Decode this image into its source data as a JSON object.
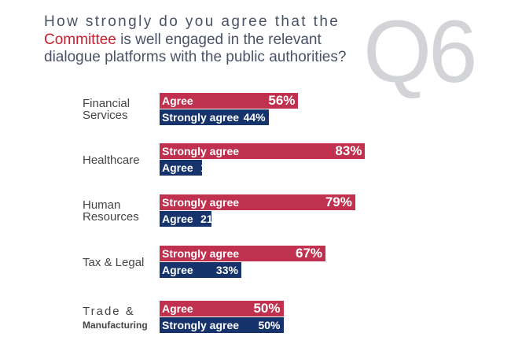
{
  "title": {
    "line1": "How strongly do you agree that the",
    "highlight": "Committee",
    "line2_rest": " is well engaged in the relevant",
    "line3": "dialogue platforms with the public authorities?"
  },
  "badge": "Q6",
  "colors": {
    "top_bar": "#c0304f",
    "bottom_bar": "#16336b",
    "highlight": "#c8202f"
  },
  "chart_data": {
    "type": "bar",
    "orientation": "horizontal",
    "unit": "%",
    "categories": [
      {
        "label": [
          "Financial",
          "Services"
        ],
        "bars": [
          {
            "label": "Agree",
            "value": 56,
            "pct": "56%"
          },
          {
            "label": "Strongly agree",
            "value": 44,
            "pct": "44%"
          }
        ]
      },
      {
        "label": [
          "Healthcare"
        ],
        "bars": [
          {
            "label": "Strongly agree",
            "value": 83,
            "pct": "83%"
          },
          {
            "label": "Agree",
            "value": 17,
            "pct": "17%"
          }
        ]
      },
      {
        "label": [
          "Human",
          "Resources"
        ],
        "bars": [
          {
            "label": "Strongly agree",
            "value": 79,
            "pct": "79%"
          },
          {
            "label": "Agree",
            "value": 21,
            "pct": "21%"
          }
        ]
      },
      {
        "label": [
          "Tax & Legal"
        ],
        "bars": [
          {
            "label": "Strongly agree",
            "value": 67,
            "pct": "67%"
          },
          {
            "label": "Agree",
            "value": 33,
            "pct": "33%"
          }
        ]
      },
      {
        "label": [
          "Trade &",
          "Manufacturing"
        ],
        "bars": [
          {
            "label": "Agree",
            "value": 50,
            "pct": "50%"
          },
          {
            "label": "Strongly agree",
            "value": 50,
            "pct": "50%"
          }
        ]
      }
    ]
  }
}
